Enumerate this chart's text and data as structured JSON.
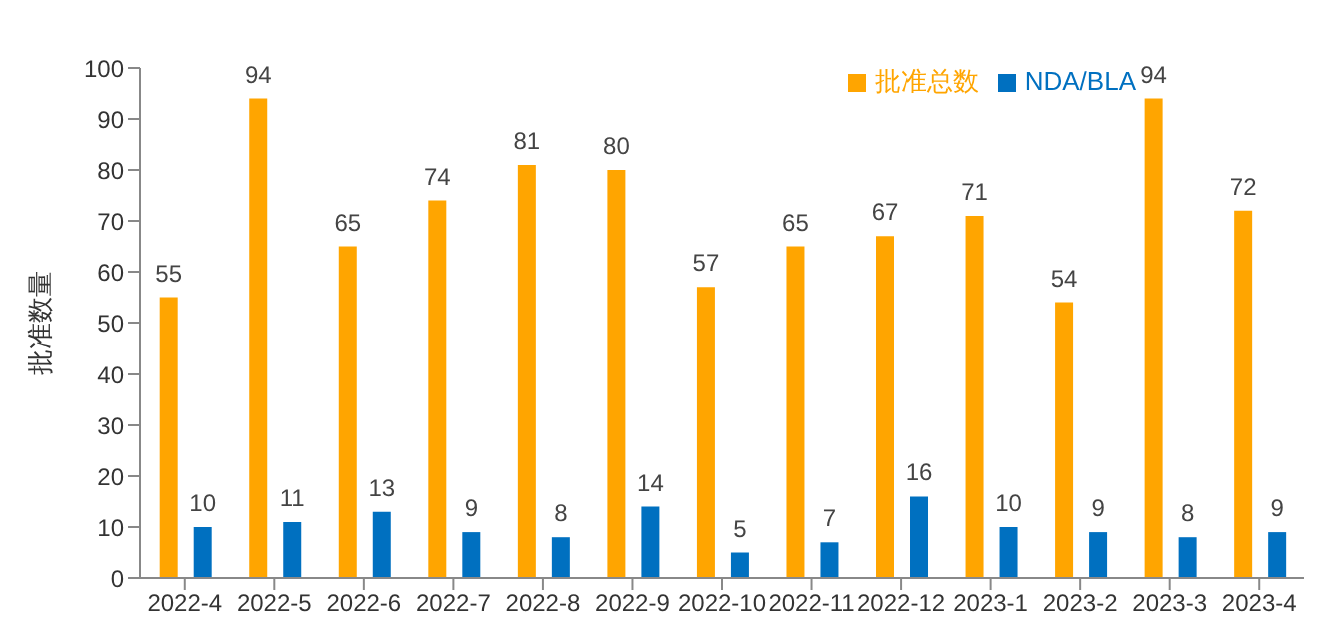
{
  "chart_data": {
    "type": "bar",
    "ylabel": "批准数量",
    "categories": [
      "2022-4",
      "2022-5",
      "2022-6",
      "2022-7",
      "2022-8",
      "2022-9",
      "2022-10",
      "2022-11",
      "2022-12",
      "2023-1",
      "2023-2",
      "2023-3",
      "2023-4"
    ],
    "series": [
      {
        "name": "批准总数",
        "color": "#ffa500",
        "values": [
          55,
          94,
          65,
          74,
          81,
          80,
          57,
          65,
          67,
          71,
          54,
          94,
          72
        ]
      },
      {
        "name": "NDA/BLA",
        "color": "#0070c0",
        "values": [
          10,
          11,
          13,
          9,
          8,
          14,
          5,
          7,
          16,
          10,
          9,
          8,
          9
        ]
      }
    ],
    "ylim": [
      0,
      100
    ],
    "yticks": [
      0,
      10,
      20,
      30,
      40,
      50,
      60,
      70,
      80,
      90,
      100
    ],
    "grid": false,
    "legend": "top right",
    "data_labels": true
  }
}
